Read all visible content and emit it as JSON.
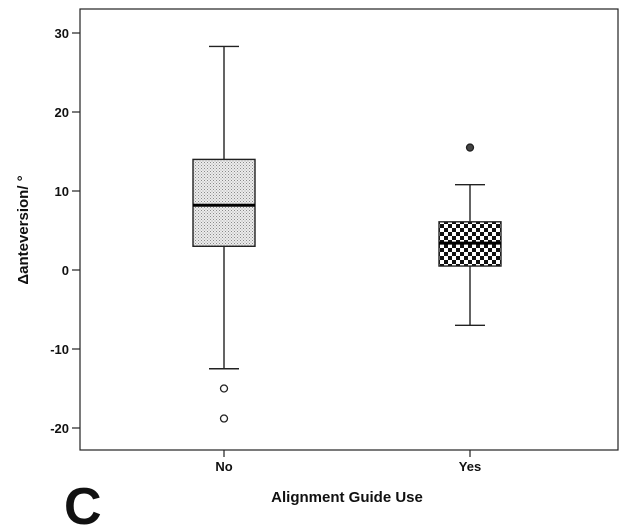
{
  "panel_label": "C",
  "chart_data": {
    "type": "box",
    "xlabel": "Alignment Guide Use",
    "ylabel": "Δanteversion/ °",
    "categories": [
      "No",
      "Yes"
    ],
    "ylim": [
      -23,
      32
    ],
    "yticks": [
      30,
      20,
      10,
      0,
      -10,
      -20
    ],
    "ytick_labels": [
      "30",
      "20",
      "10",
      "0",
      "-10",
      "-20"
    ],
    "grid": false,
    "boxes": [
      {
        "category": "No",
        "whisker_low": -12.5,
        "q1": 3,
        "median": 8.2,
        "q3": 14,
        "whisker_high": 28.3,
        "outliers": [
          -15,
          -18.8
        ],
        "fill": "dotted-gray"
      },
      {
        "category": "Yes",
        "whisker_low": -7,
        "q1": 0.5,
        "median": 3.4,
        "q3": 6.1,
        "whisker_high": 10.8,
        "outliers": [
          15.5
        ],
        "fill": "checkerboard"
      }
    ]
  }
}
